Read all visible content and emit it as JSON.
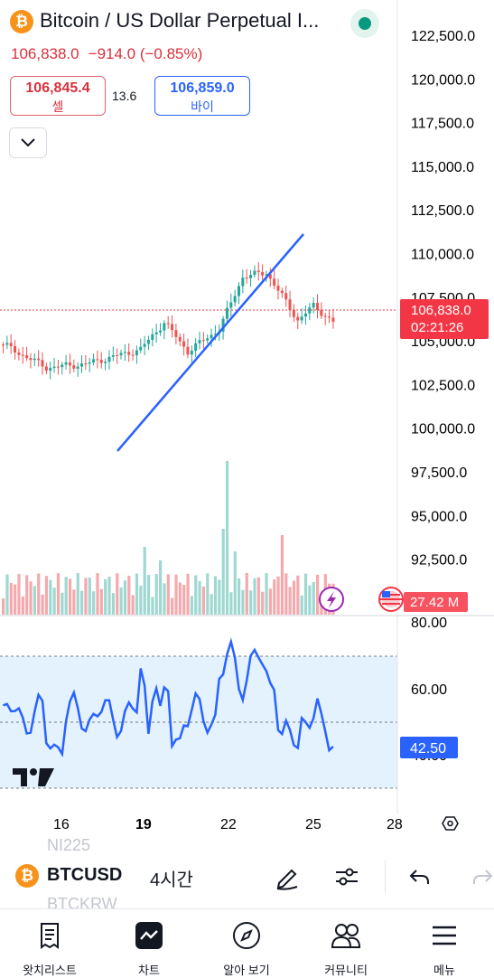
{
  "header": {
    "symbol_title": "Bitcoin / US Dollar Perpetual I...",
    "last_price": "106,838.0",
    "change": "−914.0 (−0.85%)"
  },
  "trade": {
    "sell_price": "106,845.4",
    "sell_label": "셀",
    "spread": "13.6",
    "buy_price": "106,859.0",
    "buy_label": "바이"
  },
  "price_axis": {
    "labels": [
      "122,500.0",
      "120,000.0",
      "117,500.0",
      "115,000.0",
      "112,500.0",
      "110,000.0",
      "107,500.0",
      "105,000.0",
      "102,500.0",
      "100,000.0",
      "97,500.0",
      "95,000.0",
      "92,500.0"
    ],
    "current_price": "106,838.0",
    "countdown": "02:21:26",
    "volume_value": "27.42 M"
  },
  "rsi_axis": {
    "labels": [
      "80.00",
      "60.00",
      "40.00"
    ],
    "current_value": "42.50"
  },
  "time_axis": {
    "labels": [
      "16",
      "19",
      "22",
      "25",
      "28"
    ]
  },
  "toolbar": {
    "ticker": "BTCUSD",
    "interval": "4시간",
    "ghost_above": "NI225",
    "ghost_below": "BTCKRW"
  },
  "nav": {
    "items": [
      {
        "label": "왓치리스트",
        "icon": "watchlist-icon"
      },
      {
        "label": "차트",
        "icon": "chart-icon"
      },
      {
        "label": "알아 보기",
        "icon": "compass-icon"
      },
      {
        "label": "커뮤니티",
        "icon": "community-icon"
      },
      {
        "label": "메뉴",
        "icon": "menu-icon"
      }
    ]
  },
  "colors": {
    "up": "#26a69a",
    "down": "#ef5350",
    "rsi_line": "#2962ff",
    "rsi_band": "#e3f2fd",
    "price_tag": "#f23645",
    "rsi_tag": "#2962ff"
  }
}
